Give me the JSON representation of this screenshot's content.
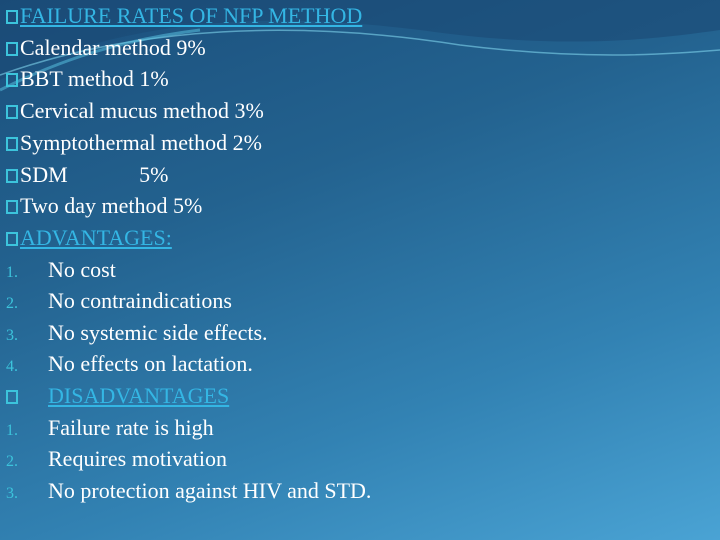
{
  "slide": {
    "heading_failure": "FAILURE RATES OF NFP METHOD",
    "failure_rates": [
      "Calendar method 9%",
      "BBT method 1%",
      "Cervical mucus method 3%",
      "Symptothermal method 2%",
      "SDM             5%",
      "Two day method 5%"
    ],
    "heading_advantages": "ADVANTAGES:",
    "advantages": [
      {
        "num": "1.",
        "text": "No cost"
      },
      {
        "num": "2.",
        "text": "No contraindications"
      },
      {
        "num": "3.",
        "text": "No systemic side effects."
      },
      {
        "num": "4.",
        "text": "No effects on lactation."
      }
    ],
    "heading_disadvantages": "DISADVANTAGES",
    "disadvantages": [
      {
        "num": "1.",
        "text": "Failure rate is high"
      },
      {
        "num": "2.",
        "text": "Requires motivation"
      },
      {
        "num": "3.",
        "text": "No protection against HIV and STD."
      }
    ],
    "colors": {
      "bullet": "#3cc4dc",
      "link": "#34b6e4",
      "text": "#ffffff"
    }
  }
}
